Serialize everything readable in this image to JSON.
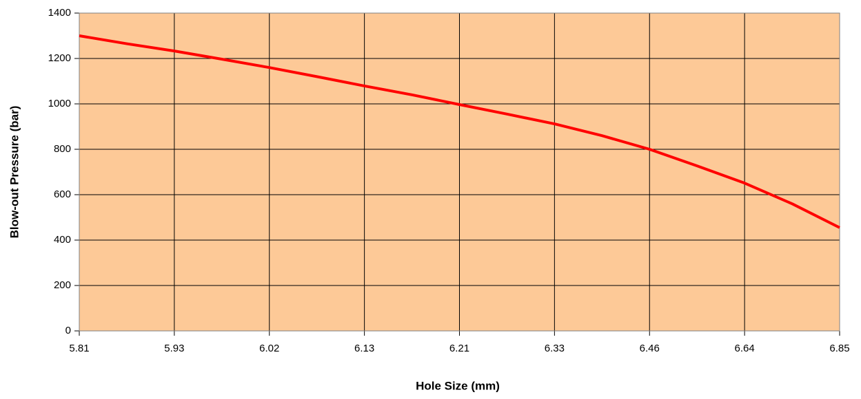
{
  "chart_data": {
    "type": "line",
    "x_label": "Hole Size (mm)",
    "y_label": "Blow-out Pressure (bar)",
    "categories": [
      "5.81",
      null,
      "5.93",
      null,
      "6.02",
      null,
      "6.13",
      null,
      "6.21",
      null,
      "6.33",
      null,
      "6.46",
      null,
      "6.64",
      null,
      "6.85"
    ],
    "values": [
      1300,
      1265,
      1233,
      1197,
      1160,
      1120,
      1079,
      1040,
      997,
      955,
      912,
      860,
      800,
      727,
      651,
      560,
      455
    ],
    "color": "#ff0000",
    "background": "#fdc997",
    "ylim": [
      0,
      1400
    ],
    "yticks": [
      0,
      200,
      400,
      600,
      800,
      1000,
      1200,
      1400
    ],
    "grid": true
  }
}
